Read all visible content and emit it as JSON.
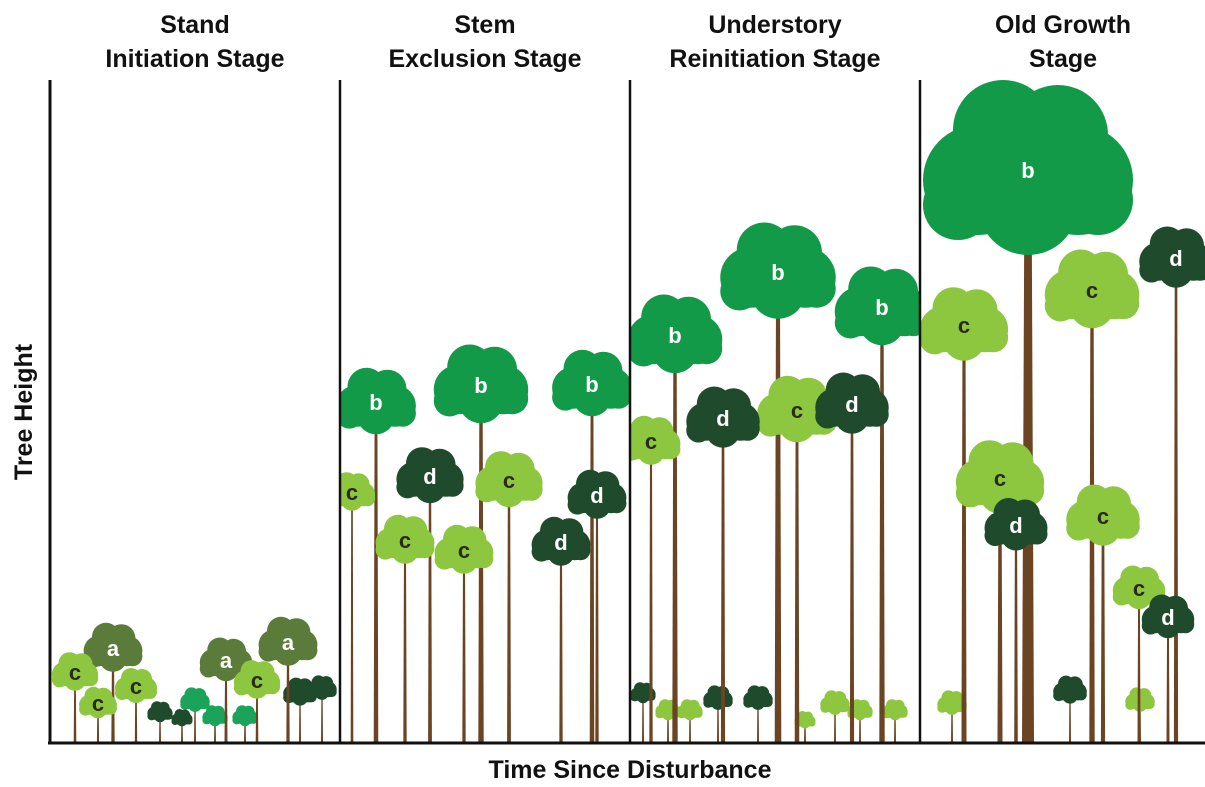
{
  "panels": [
    {
      "title_lines": [
        "Stand",
        "Initiation Stage"
      ],
      "trees": [
        "a",
        "a",
        "a",
        "c",
        "c",
        "c",
        "c"
      ]
    },
    {
      "title_lines": [
        "Stem",
        "Exclusion Stage"
      ],
      "trees": [
        "b",
        "b",
        "b",
        "c",
        "c",
        "c",
        "c",
        "d",
        "d",
        "d"
      ]
    },
    {
      "title_lines": [
        "Understory",
        "Reinitiation Stage"
      ],
      "trees": [
        "b",
        "b",
        "b",
        "c",
        "c",
        "d",
        "d"
      ]
    },
    {
      "title_lines": [
        "Old Growth",
        "Stage"
      ],
      "trees": [
        "b",
        "c",
        "c",
        "c",
        "c",
        "c",
        "d",
        "d",
        "d"
      ]
    }
  ],
  "y_axis_label": "Tree Height",
  "x_axis_label": "Time Since Disturbance"
}
